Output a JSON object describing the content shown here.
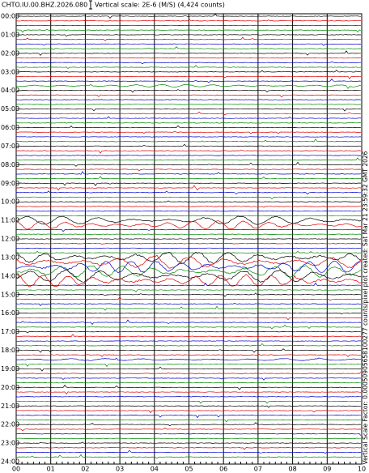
{
  "header": {
    "title": "CHTO.IU.00.BHZ.2026.080",
    "scale": "Vertical scale: 2E-6 (M/S) (4,424 counts)"
  },
  "hours": [
    "00:00",
    "01:00",
    "02:00",
    "03:00",
    "04:00",
    "05:00",
    "06:00",
    "07:00",
    "08:00",
    "09:00",
    "10:00",
    "11:00",
    "12:00",
    "13:00",
    "14:00",
    "15:00",
    "16:00",
    "17:00",
    "18:00",
    "19:00",
    "20:00",
    "21:00",
    "22:00",
    "23:00",
    "24:00"
  ],
  "minutes": [
    "00",
    "01",
    "02",
    "03",
    "04",
    "05",
    "06",
    "07",
    "08",
    "09",
    "10"
  ],
  "footer": "Vertical Scale Factor: 0.00050905658100277 counts/pixel plot created: Sat Mar 21 23:59:32 GMT 2026"
}
